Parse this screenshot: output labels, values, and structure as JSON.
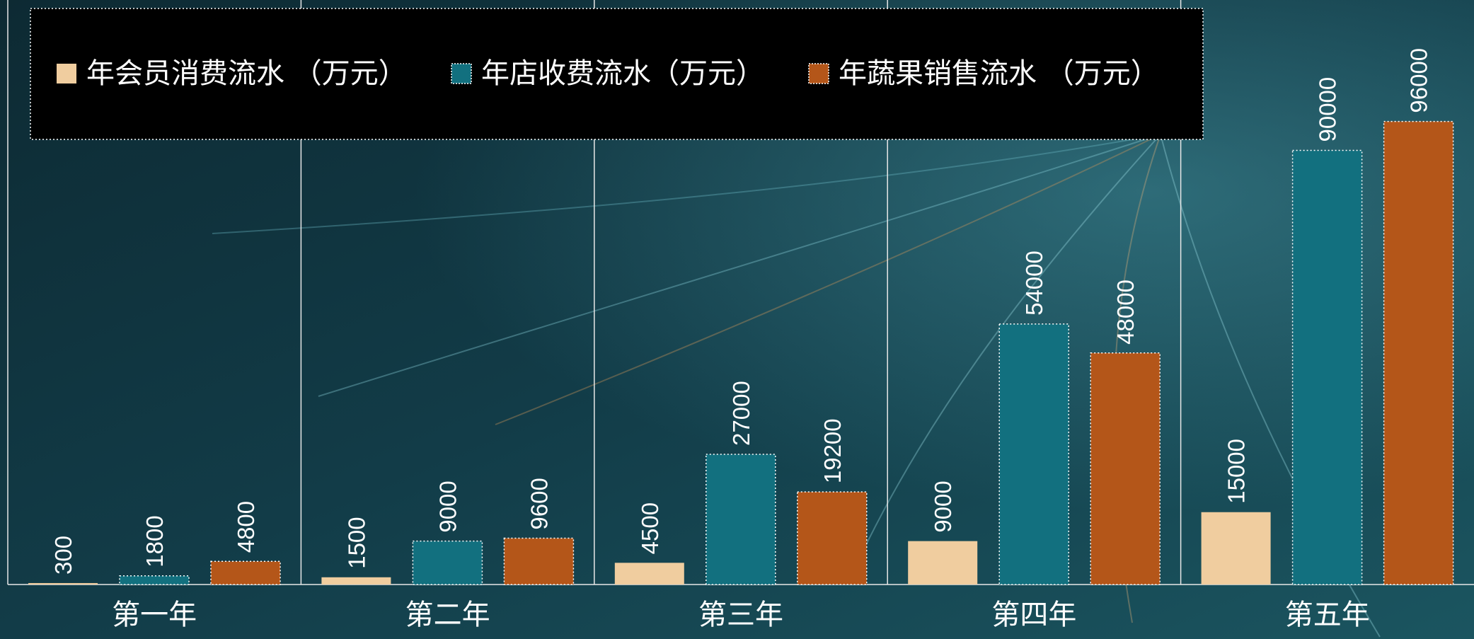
{
  "chart_data": {
    "type": "bar",
    "categories": [
      "第一年",
      "第二年",
      "第三年",
      "第四年",
      "第五年"
    ],
    "series": [
      {
        "name": "年会员消费流水 （万元）",
        "color": "#f0cd9f",
        "values": [
          300,
          1500,
          4500,
          9000,
          15000
        ]
      },
      {
        "name": "年店收费流水（万元）",
        "color": "#12707f",
        "values": [
          1800,
          9000,
          27000,
          54000,
          90000
        ]
      },
      {
        "name": "年蔬果销售流水 （万元）",
        "color": "#b45619",
        "values": [
          4800,
          9600,
          19200,
          48000,
          96000
        ]
      }
    ],
    "ylim": [
      0,
      120000
    ]
  }
}
